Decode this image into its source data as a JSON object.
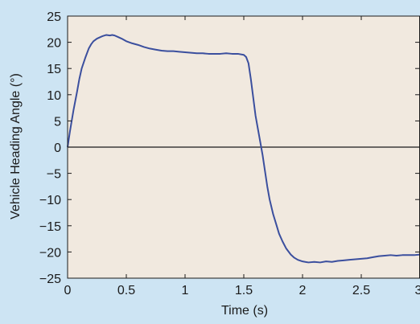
{
  "chart_data": {
    "type": "line",
    "title": "",
    "xlabel": "Time (s)",
    "ylabel": "Vehicle Heading Angle (°)",
    "xlim": [
      0,
      3
    ],
    "ylim": [
      -25,
      25
    ],
    "x_ticks": [
      0,
      0.5,
      1,
      1.5,
      2,
      2.5,
      3
    ],
    "x_tick_labels": [
      "0",
      "0.5",
      "1",
      "1.5",
      "2",
      "2.5",
      "3"
    ],
    "y_ticks": [
      25,
      20,
      15,
      10,
      5,
      0,
      -5,
      -10,
      -15,
      -20,
      -25
    ],
    "y_tick_labels": [
      "25",
      "20",
      "15",
      "10",
      "5",
      "0",
      "−5",
      "−10",
      "−15",
      "−20",
      "−25"
    ],
    "grid": false,
    "zero_line": true,
    "colors": {
      "page_background": "#cde4f3",
      "plot_background": "#f1e9df",
      "line": "#3b4f9e",
      "axis": "#1a1a1a"
    },
    "series": [
      {
        "x": [
          0,
          0.02,
          0.05,
          0.08,
          0.1,
          0.12,
          0.15,
          0.18,
          0.2,
          0.22,
          0.25,
          0.28,
          0.3,
          0.33,
          0.36,
          0.38,
          0.4,
          0.43,
          0.46,
          0.5,
          0.55,
          0.6,
          0.65,
          0.7,
          0.75,
          0.8,
          0.85,
          0.9,
          0.95,
          1.0,
          1.05,
          1.1,
          1.15,
          1.2,
          1.25,
          1.3,
          1.35,
          1.4,
          1.45,
          1.5,
          1.52,
          1.54,
          1.56,
          1.58,
          1.6,
          1.62,
          1.64,
          1.66,
          1.68,
          1.7,
          1.72,
          1.75,
          1.78,
          1.8,
          1.83,
          1.86,
          1.9,
          1.93,
          1.96,
          2.0,
          2.05,
          2.1,
          2.15,
          2.2,
          2.25,
          2.3,
          2.35,
          2.4,
          2.45,
          2.5,
          2.55,
          2.6,
          2.65,
          2.7,
          2.75,
          2.8,
          2.85,
          2.9,
          2.95,
          3.0
        ],
        "y": [
          0,
          3,
          7,
          10.5,
          13,
          15,
          17,
          18.8,
          19.6,
          20.2,
          20.7,
          21,
          21.2,
          21.4,
          21.3,
          21.4,
          21.3,
          21.0,
          20.7,
          20.2,
          19.8,
          19.5,
          19.1,
          18.8,
          18.6,
          18.4,
          18.3,
          18.3,
          18.2,
          18.1,
          18.0,
          17.9,
          17.9,
          17.8,
          17.8,
          17.8,
          17.9,
          17.8,
          17.8,
          17.6,
          17.2,
          16.0,
          13.0,
          9.5,
          6.0,
          3.5,
          1.0,
          -1.5,
          -4.5,
          -7.5,
          -10.0,
          -12.8,
          -15.0,
          -16.5,
          -18.0,
          -19.3,
          -20.5,
          -21.1,
          -21.5,
          -21.8,
          -22.0,
          -21.9,
          -22.0,
          -21.8,
          -21.9,
          -21.7,
          -21.6,
          -21.5,
          -21.4,
          -21.3,
          -21.2,
          -21.0,
          -20.8,
          -20.7,
          -20.6,
          -20.7,
          -20.6,
          -20.6,
          -20.6,
          -20.5
        ]
      }
    ]
  }
}
